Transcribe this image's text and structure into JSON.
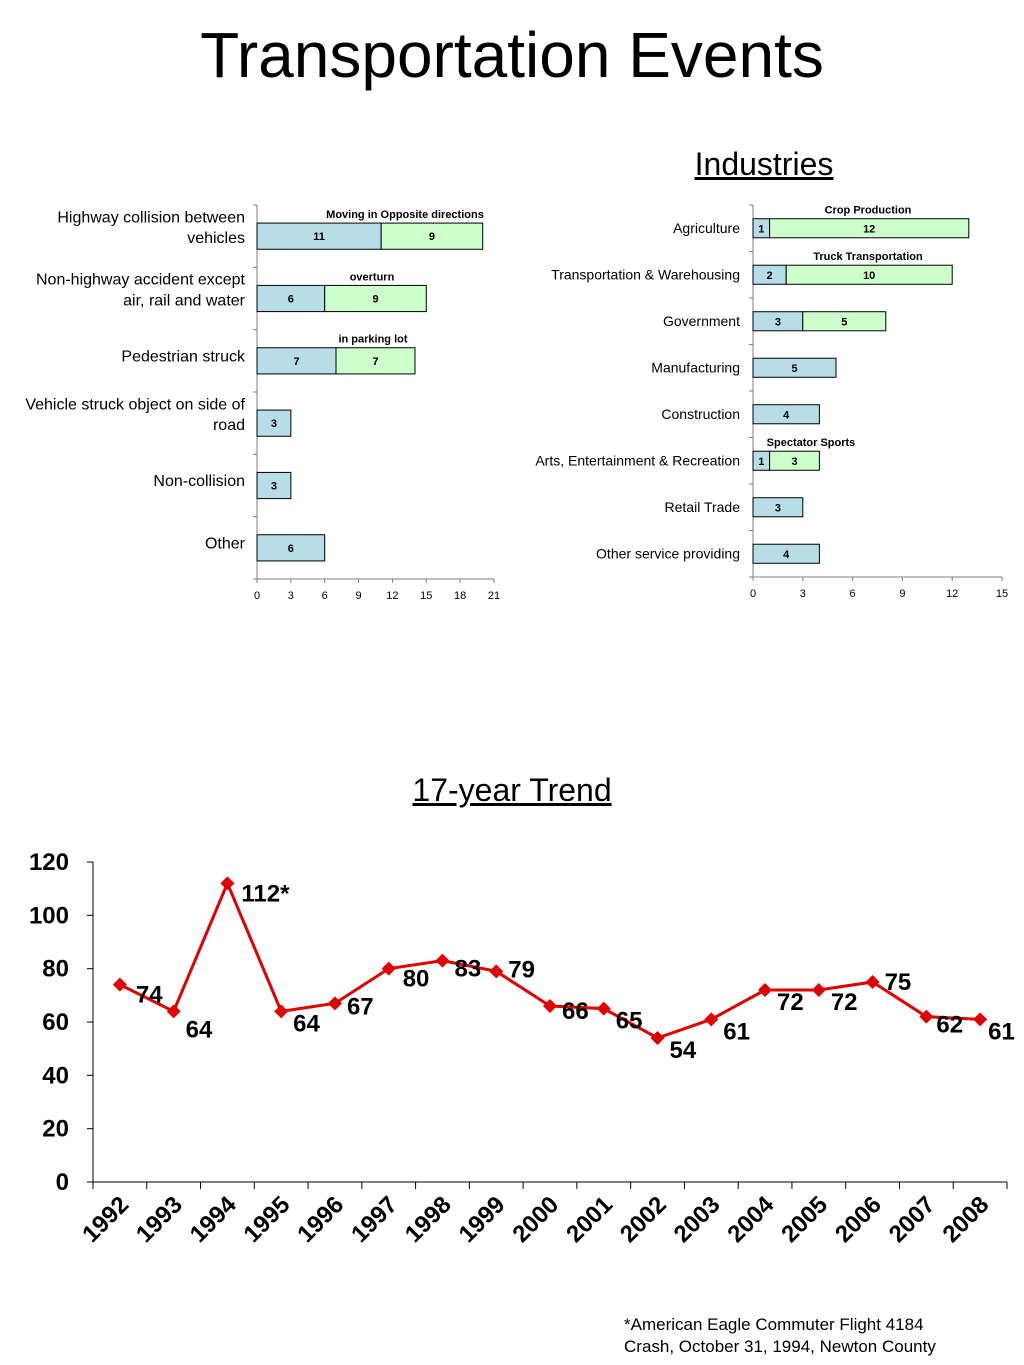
{
  "page_title": "Transportation Events",
  "industries_title": "Industries",
  "trend_title": "17-year Trend",
  "footnote": [
    "*American Eagle Commuter Flight 4184",
    "Crash, October 31, 1994, Newton County"
  ],
  "colors": {
    "bar_primary": "#b7dde6",
    "bar_secondary": "#ccffcc",
    "bar_stroke": "#000000",
    "line": "#e00000"
  },
  "chart_data": [
    {
      "id": "events",
      "type": "bar",
      "orientation": "horizontal",
      "stacked": true,
      "categories": [
        "Highway collision between vehicles",
        "Non-highway accident except air, rail and water",
        "Pedestrian struck",
        "Vehicle struck object on side of road",
        "Non-collision",
        "Other"
      ],
      "series": [
        {
          "values": [
            11,
            6,
            7,
            3,
            3,
            6
          ]
        },
        {
          "values": [
            9,
            9,
            7,
            0,
            0,
            0
          ]
        }
      ],
      "annotations": [
        {
          "category": "Highway collision between vehicles",
          "text": "Moving in Opposite directions"
        },
        {
          "category": "Non-highway accident except air, rail and water",
          "text": "overturn"
        },
        {
          "category": "Pedestrian struck",
          "text": "in parking lot"
        }
      ],
      "xlim": [
        0,
        21
      ],
      "xticks": [
        "0",
        "3",
        "6",
        "9",
        "12",
        "15",
        "18",
        "21"
      ],
      "grid": false
    },
    {
      "id": "industries",
      "type": "bar",
      "orientation": "horizontal",
      "stacked": true,
      "title": "Industries",
      "categories": [
        "Agriculture",
        "Transportation & Warehousing",
        "Government",
        "Manufacturing",
        "Construction",
        "Arts, Entertainment & Recreation",
        "Retail Trade",
        "Other service providing"
      ],
      "series": [
        {
          "values": [
            1,
            2,
            3,
            5,
            4,
            1,
            3,
            4
          ]
        },
        {
          "values": [
            12,
            10,
            5,
            0,
            0,
            3,
            0,
            0
          ]
        }
      ],
      "annotations": [
        {
          "category": "Agriculture",
          "text": "Crop Production"
        },
        {
          "category": "Transportation & Warehousing",
          "text": "Truck Transportation"
        },
        {
          "category": "Arts, Entertainment & Recreation",
          "text": "Spectator Sports"
        }
      ],
      "xlim": [
        0,
        15
      ],
      "xticks": [
        "0",
        "3",
        "6",
        "9",
        "12",
        "15"
      ],
      "grid": false
    },
    {
      "id": "trend",
      "type": "line",
      "title": "17-year Trend",
      "x": [
        "1992",
        "1993",
        "1994",
        "1995",
        "1996",
        "1997",
        "1998",
        "1999",
        "2000",
        "2001",
        "2002",
        "2003",
        "2004",
        "2005",
        "2006",
        "2007",
        "2008"
      ],
      "series": [
        {
          "values": [
            74,
            64,
            112,
            64,
            67,
            80,
            83,
            79,
            66,
            65,
            54,
            61,
            72,
            72,
            75,
            62,
            61
          ]
        }
      ],
      "data_labels": [
        "74",
        "64",
        "112*",
        "64",
        "67",
        "80",
        "83",
        "79",
        "66",
        "65",
        "54",
        "61",
        "72",
        "72",
        "75",
        "62",
        "61"
      ],
      "ylim": [
        0,
        120
      ],
      "yticks": [
        "0",
        "20",
        "40",
        "60",
        "80",
        "100",
        "120"
      ],
      "grid": false,
      "marker": "diamond"
    }
  ]
}
